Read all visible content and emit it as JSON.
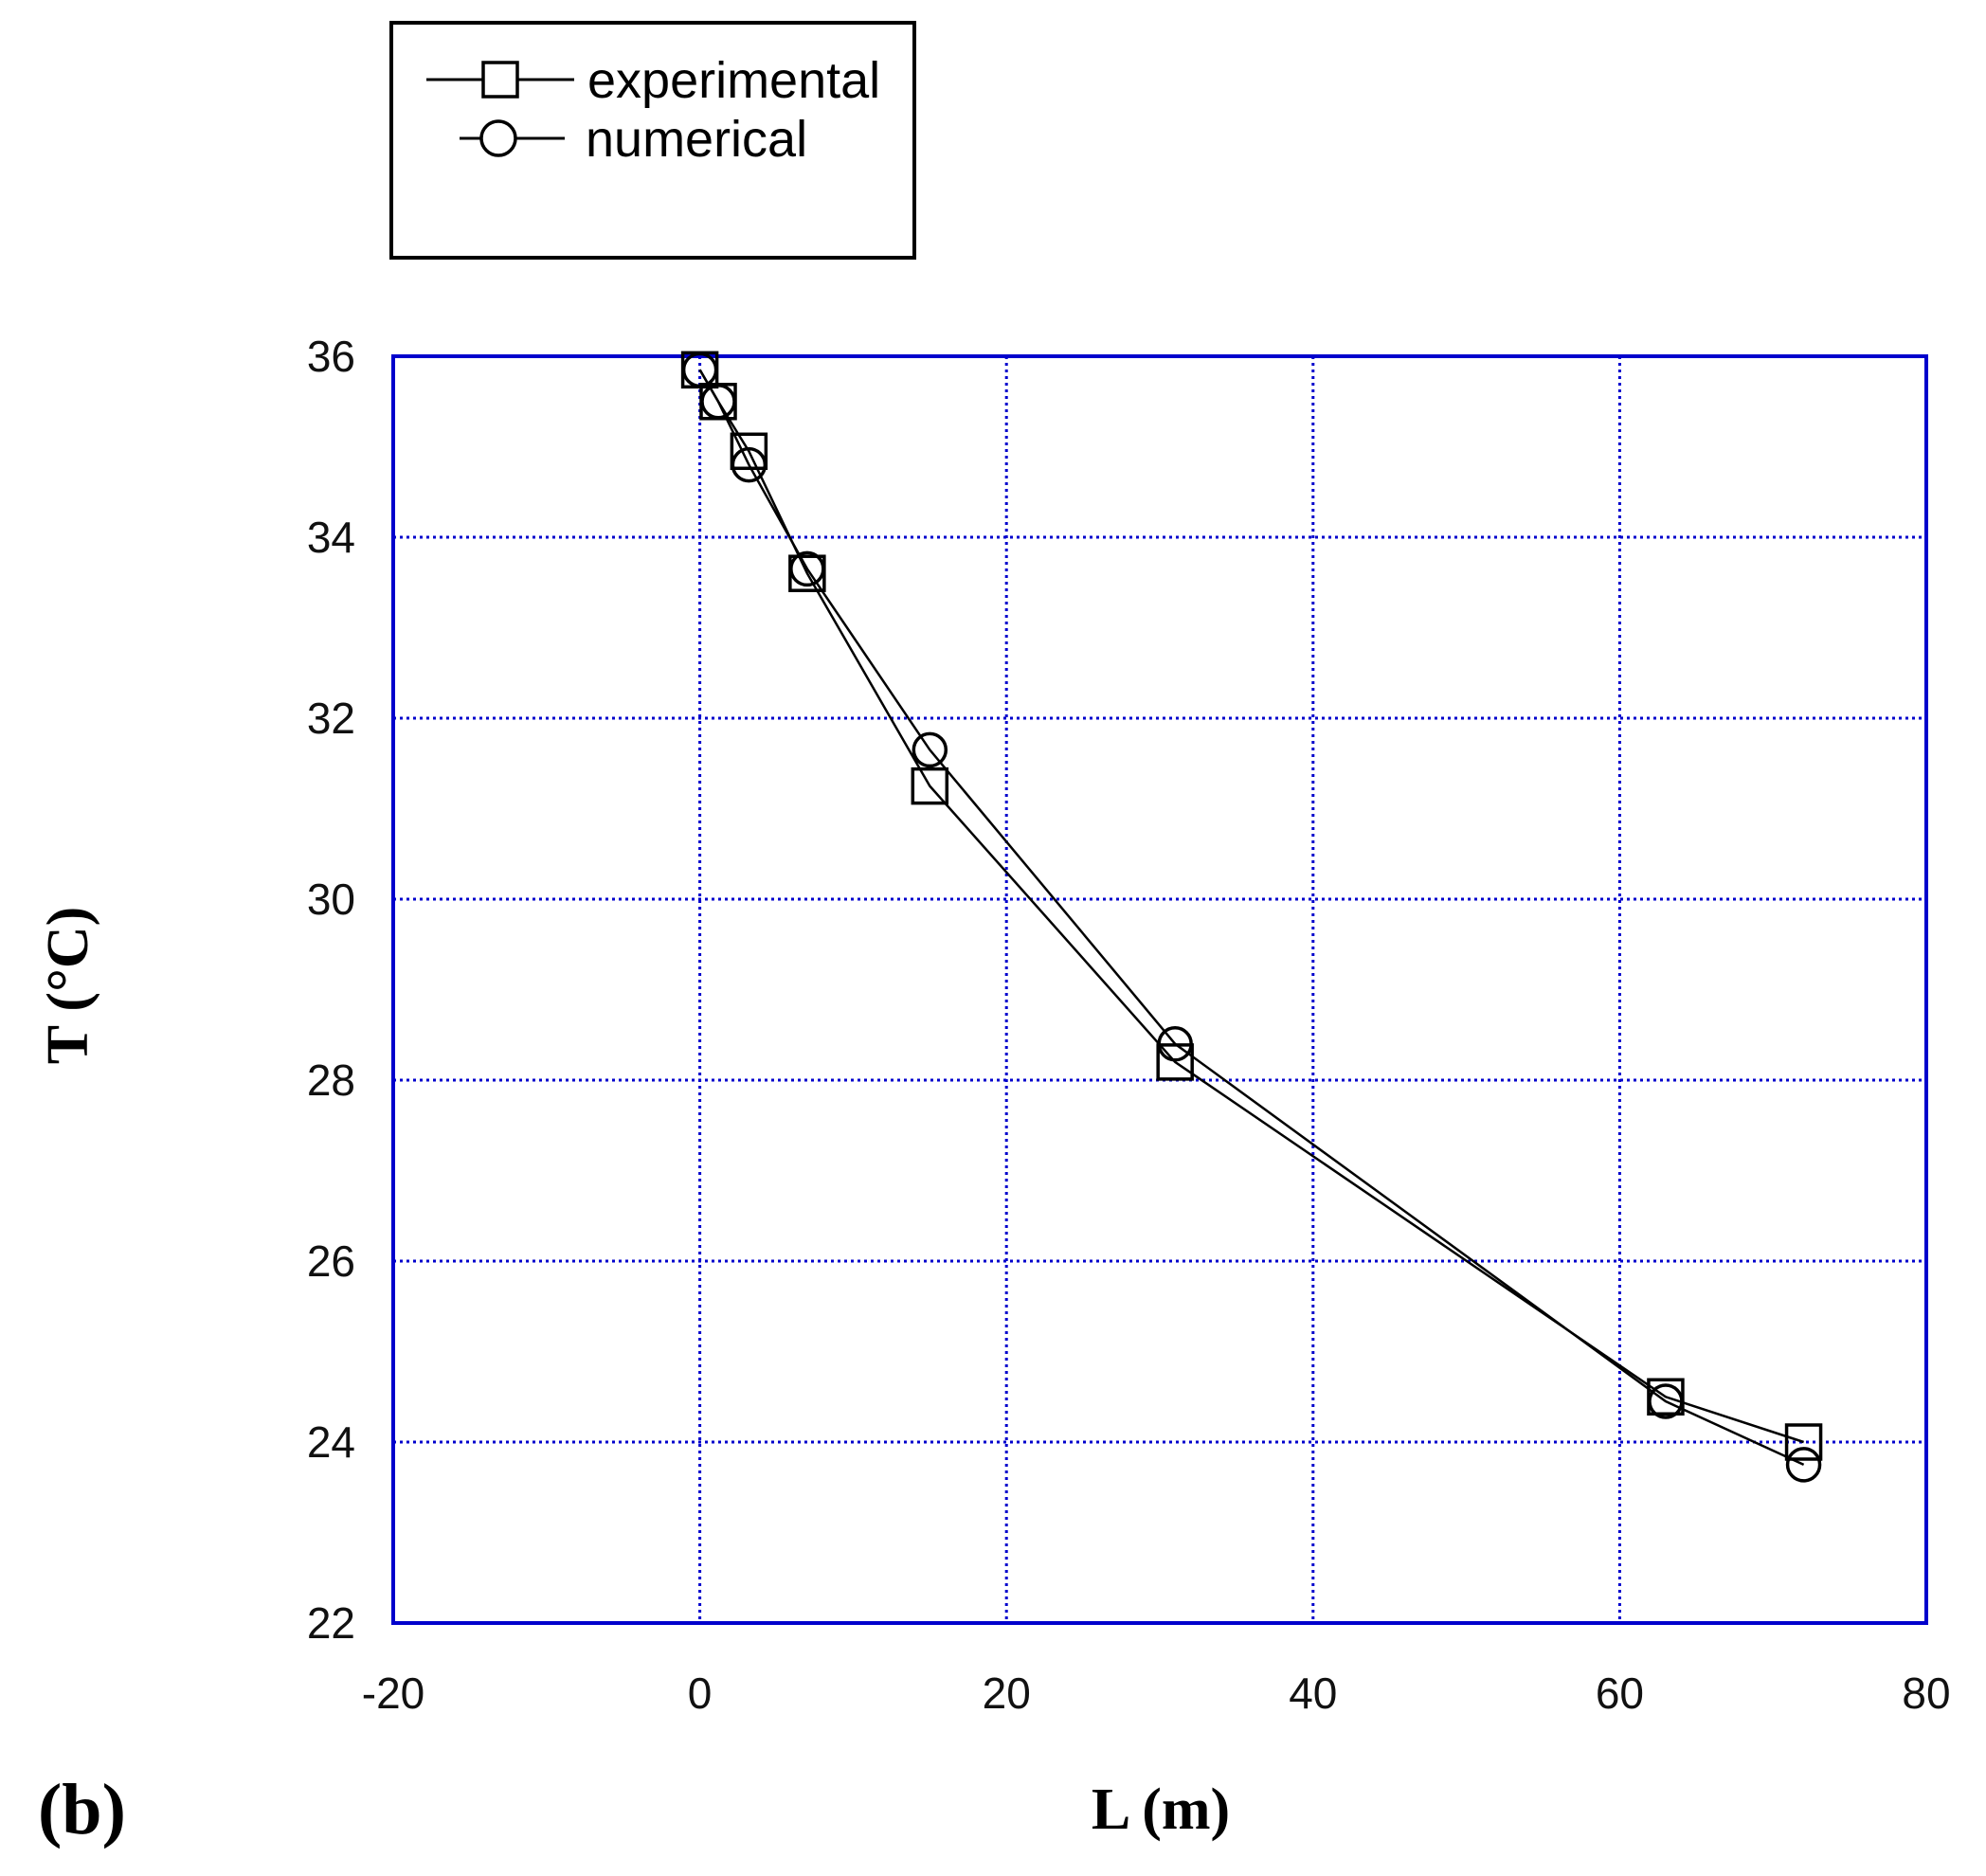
{
  "panel_label": "(b)",
  "colors": {
    "frame": "#0000cc",
    "grid": "#0000cc",
    "series": "#000000",
    "background": "#ffffff"
  },
  "legend": {
    "placement": "top-left, outside plot area",
    "items": [
      {
        "label": "experimental",
        "marker": "square"
      },
      {
        "label": "numerical",
        "marker": "circle"
      }
    ]
  },
  "chart_data": {
    "type": "line",
    "title": "",
    "xlabel": "L (m)",
    "ylabel": "T (°C)",
    "xlim": [
      -20,
      80
    ],
    "ylim": [
      22,
      36
    ],
    "xticks": [
      -20,
      0,
      20,
      40,
      60,
      80
    ],
    "yticks": [
      22,
      24,
      26,
      28,
      30,
      32,
      34,
      36
    ],
    "grid": true,
    "grid_style": "dotted",
    "series": [
      {
        "name": "experimental",
        "marker": "square",
        "x": [
          0,
          1.2,
          3.2,
          7,
          15,
          31,
          63,
          72
        ],
        "y": [
          35.85,
          35.5,
          34.95,
          33.6,
          31.25,
          28.2,
          24.5,
          24.0
        ]
      },
      {
        "name": "numerical",
        "marker": "circle",
        "x": [
          0,
          1.2,
          3.2,
          7,
          15,
          31,
          63,
          72
        ],
        "y": [
          35.85,
          35.5,
          34.8,
          33.65,
          31.65,
          28.4,
          24.45,
          23.75
        ]
      }
    ]
  }
}
